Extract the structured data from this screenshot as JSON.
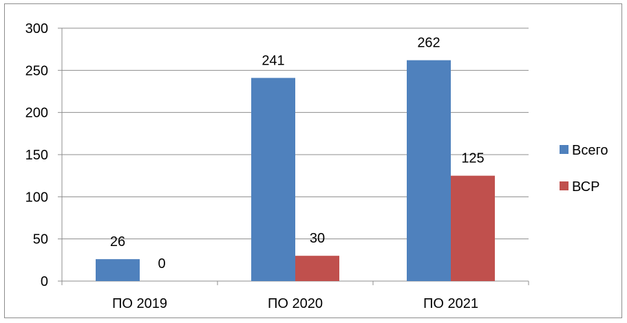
{
  "chart_data": {
    "type": "bar",
    "categories": [
      "ПО 2019",
      "ПО 2020",
      "ПО 2021"
    ],
    "series": [
      {
        "name": "Всего",
        "values": [
          26,
          241,
          262
        ],
        "color": "#4f81bd"
      },
      {
        "name": "ВСР",
        "values": [
          0,
          30,
          125
        ],
        "color": "#c0504d"
      }
    ],
    "title": "",
    "xlabel": "",
    "ylabel": "",
    "ylim": [
      0,
      300
    ],
    "yticks": [
      "0",
      "50",
      "100",
      "150",
      "200",
      "250",
      "300"
    ],
    "grid": true,
    "legend": "right",
    "data_labels": true,
    "colors": {
      "grid": "#8c8c8c",
      "axis": "#8c8c8c",
      "text": "#000000"
    }
  }
}
